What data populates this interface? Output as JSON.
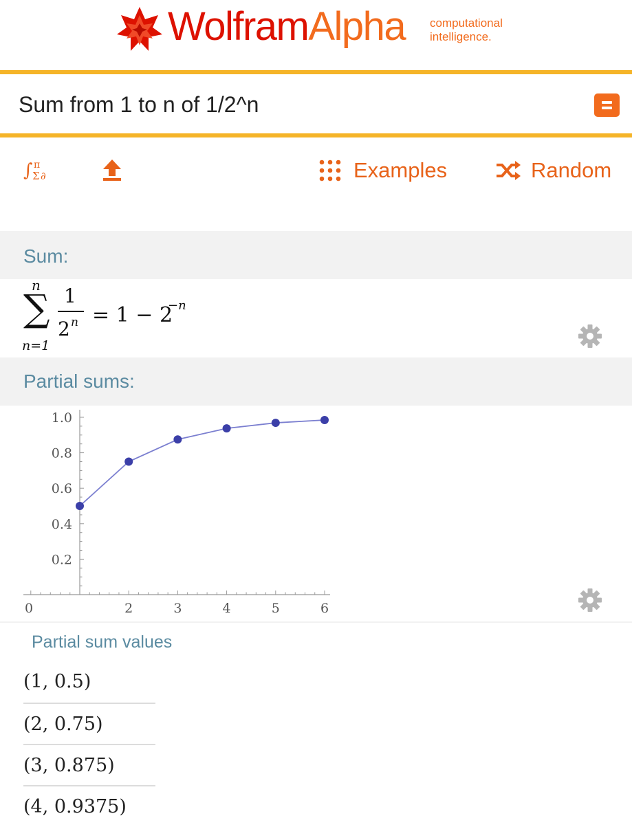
{
  "header": {
    "logo_part1": "Wolfram",
    "logo_part2": "Alpha",
    "tagline_line1": "computational",
    "tagline_line2": "intelligence."
  },
  "search": {
    "query": "Sum from 1 to n of 1/2^n"
  },
  "toolbar": {
    "math_input_icon": "math-input-icon",
    "upload_icon": "upload-icon",
    "examples_label": "Examples",
    "random_label": "Random"
  },
  "pods": {
    "sum": {
      "title": "Sum:",
      "upper_limit": "n",
      "lower_limit": "n=1",
      "numerator": "1",
      "denominator_base": "2",
      "denominator_exp": "n",
      "equals": "= 1 − 2",
      "result_exp": "−n"
    },
    "partial_sums": {
      "title": "Partial sums:"
    },
    "values": {
      "title": "Partial sum values",
      "rows": [
        "(1, 0.5)",
        "(2, 0.75)",
        "(3, 0.875)",
        "(4, 0.9375)"
      ]
    }
  },
  "colors": {
    "accent": "#f26b1d",
    "brand_red": "#dd1100",
    "rule": "#f5b428",
    "pod_title": "#5b8ba1",
    "point": "#3b3fa8"
  },
  "chart_data": {
    "type": "scatter",
    "x": [
      1,
      2,
      3,
      4,
      5,
      6
    ],
    "y": [
      0.5,
      0.75,
      0.875,
      0.9375,
      0.96875,
      0.984375
    ],
    "xticks": [
      "0",
      "2",
      "3",
      "4",
      "5",
      "6"
    ],
    "yticks": [
      "0.2",
      "0.4",
      "0.6",
      "0.8",
      "1.0"
    ],
    "xlim": [
      0,
      6
    ],
    "ylim": [
      0,
      1
    ],
    "joined": true,
    "grid": false
  }
}
